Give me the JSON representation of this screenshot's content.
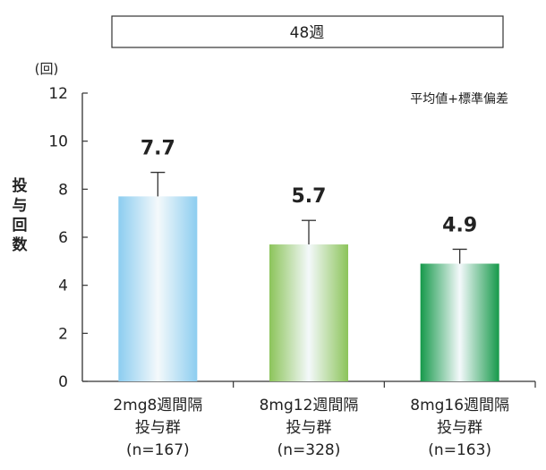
{
  "header_label": "48週",
  "unit_label": "(回)",
  "note": "平均値+標準偏差",
  "colors": {
    "blue": "#8ccdf0",
    "light_green": "#8cc45a",
    "dark_green": "#16994a"
  },
  "chart_data": {
    "type": "bar",
    "ylabel": "投与回数",
    "ylim": [
      0,
      12
    ],
    "yticks": [
      0,
      2,
      4,
      6,
      8,
      10,
      12
    ],
    "grid": false,
    "categories": [
      [
        "2mg8週間隔",
        "投与群",
        "(n=167)"
      ],
      [
        "8mg12週間隔",
        "投与群",
        "(n=328)"
      ],
      [
        "8mg16週間隔",
        "投与群",
        "(n=163)"
      ]
    ],
    "values": [
      7.7,
      5.7,
      4.9
    ],
    "value_labels": [
      "7.7",
      "5.7",
      "4.9"
    ],
    "error_upper": [
      8.7,
      6.7,
      5.5
    ],
    "bar_colors": [
      "blue",
      "light_green",
      "dark_green"
    ]
  }
}
